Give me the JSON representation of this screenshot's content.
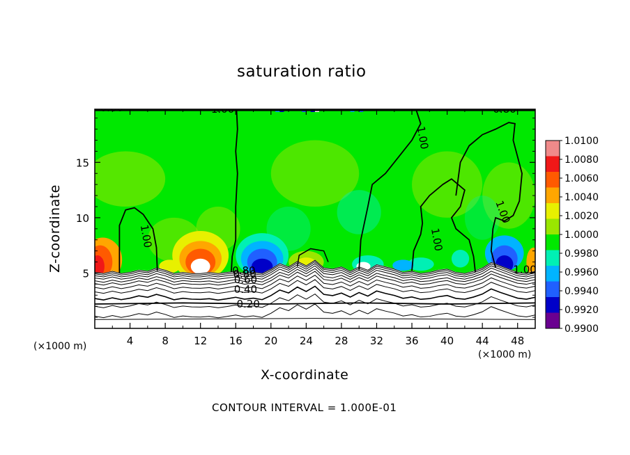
{
  "chart_data": {
    "type": "heatmap",
    "title": "saturation ratio",
    "xlabel": "X-coordinate",
    "ylabel": "Z-coordinate",
    "x_multiplier": "(×1000 m)",
    "y_multiplier": "(×1000 m)",
    "xlim": [
      0,
      50
    ],
    "ylim": [
      0,
      19.8
    ],
    "x_ticks": [
      4,
      8,
      12,
      16,
      20,
      24,
      28,
      32,
      36,
      40,
      44,
      48
    ],
    "y_ticks": [
      5,
      10,
      15
    ],
    "colorbar": {
      "levels": [
        "1.0100",
        "1.0080",
        "1.0060",
        "1.0040",
        "1.0020",
        "1.0000",
        "0.9980",
        "0.9960",
        "0.9940",
        "0.9920",
        "0.9900"
      ],
      "colors": [
        "#f08a8a",
        "#f01818",
        "#ff5a00",
        "#ffa600",
        "#e8f000",
        "#9ae600",
        "#00e800",
        "#00f0b4",
        "#00b4ff",
        "#2060ff",
        "#0000c8",
        "#6a0090"
      ]
    },
    "contour_labels": [
      "0.80",
      "1.00",
      "0.80",
      "1.00",
      "1.00",
      "1.00",
      "1.00",
      "1.00",
      "0.80",
      "0.60",
      "0.40",
      "0.20",
      "0.80"
    ],
    "contour_interval_note": "CONTOUR INTERVAL = 1.000E-01",
    "grid": false,
    "legend": "right colorbar"
  }
}
